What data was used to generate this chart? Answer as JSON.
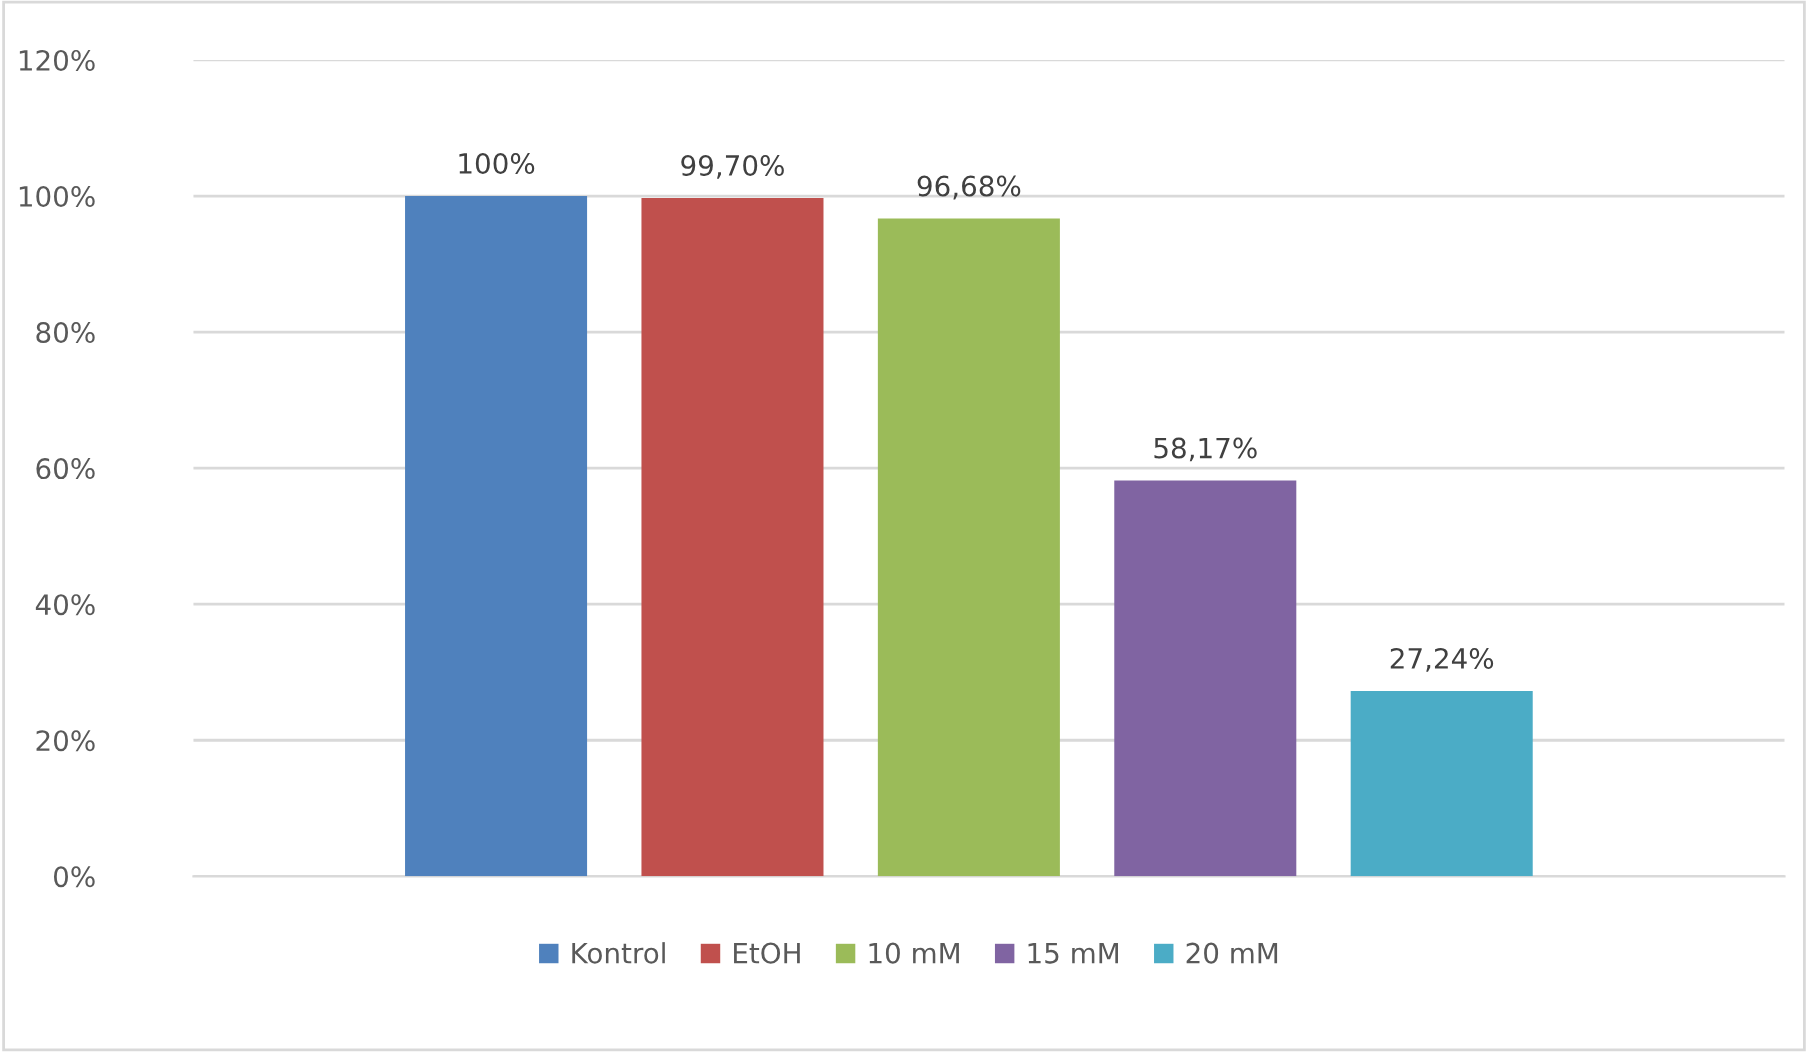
{
  "chart_data": {
    "type": "bar",
    "categories": [
      null
    ],
    "series": [
      {
        "name": "Kontrol",
        "color": "#4f81bd",
        "values": [
          100
        ],
        "value_labels": [
          "100%"
        ]
      },
      {
        "name": "EtOH",
        "color": "#c0504d",
        "values": [
          99.7
        ],
        "value_labels": [
          "99,70%"
        ]
      },
      {
        "name": "10 mM",
        "color": "#9bbb59",
        "values": [
          96.68
        ],
        "value_labels": [
          "96,68%"
        ]
      },
      {
        "name": "15 mM",
        "color": "#8064a2",
        "values": [
          58.17
        ],
        "value_labels": [
          "58,17%"
        ]
      },
      {
        "name": "20 mM",
        "color": "#4bacc6",
        "values": [
          27.24
        ],
        "value_labels": [
          "27,24%"
        ]
      }
    ],
    "ylim": [
      0,
      120
    ],
    "yticks": [
      {
        "value": 0,
        "label": "0%"
      },
      {
        "value": 20,
        "label": "20%"
      },
      {
        "value": 40,
        "label": "40%"
      },
      {
        "value": 60,
        "label": "60%"
      },
      {
        "value": 80,
        "label": "80%"
      },
      {
        "value": 100,
        "label": "100%"
      },
      {
        "value": 120,
        "label": "120%"
      }
    ],
    "grid": "y",
    "legend": "bottom"
  }
}
